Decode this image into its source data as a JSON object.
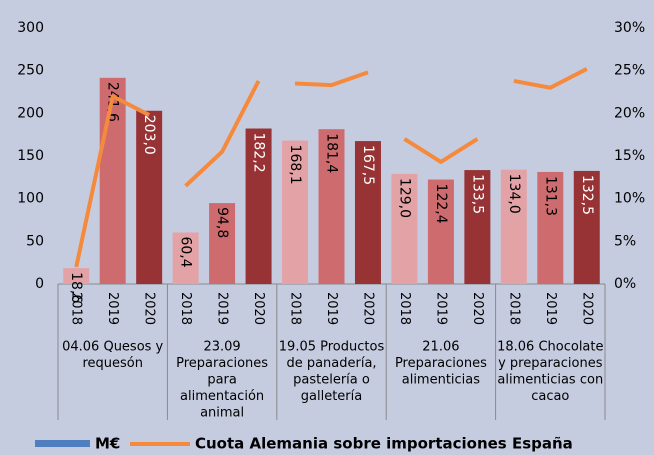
{
  "chart_data": {
    "type": "bar_line",
    "groups": [
      {
        "label": [
          "04.06 Quesos y",
          "requesón"
        ],
        "categories": [
          "2018",
          "2019",
          "2020"
        ]
      },
      {
        "label": [
          "23.09",
          "Preparaciones",
          "para",
          "alimentación",
          "animal"
        ],
        "categories": [
          "2018",
          "2019",
          "2020"
        ]
      },
      {
        "label": [
          "19.05 Productos",
          "de panadería,",
          "pastelería o",
          "galletería"
        ],
        "categories": [
          "2018",
          "2019",
          "2020"
        ]
      },
      {
        "label": [
          "21.06",
          "Preparaciones",
          "alimenticias"
        ],
        "categories": [
          "2018",
          "2019",
          "2020"
        ]
      },
      {
        "label": [
          "18.06 Chocolate",
          "y preparaciones",
          "alimenticias con",
          "cacao"
        ],
        "categories": [
          "2018",
          "2019",
          "2020"
        ]
      }
    ],
    "series": [
      {
        "name": "M€",
        "color": "#4f7fbf",
        "bar_colors": [
          "#e3a3a6",
          "#cd6b6e",
          "#973235"
        ],
        "values": [
          18.6,
          241.6,
          203.0,
          60.4,
          94.8,
          182.2,
          168.1,
          181.4,
          167.5,
          129.0,
          122.4,
          133.5,
          134.0,
          131.3,
          132.5
        ],
        "value_labels": [
          "18,6",
          "241,6",
          "203,0",
          "60,4",
          "94,8",
          "182,2",
          "168,1",
          "181,4",
          "167,5",
          "129,0",
          "122,4",
          "133,5",
          "134,0",
          "131,3",
          "132,5"
        ]
      },
      {
        "name": "Cuota Alemania sobre importaciones España",
        "color": "#f58a3c",
        "axis": "y2",
        "values": [
          2,
          22,
          19.8,
          11.5,
          15.5,
          23.8,
          23.5,
          23.3,
          24.8,
          17,
          14.3,
          17,
          23.8,
          23,
          25.2
        ]
      }
    ],
    "ylim": [
      0,
      300
    ],
    "yticks": [
      0,
      50,
      100,
      150,
      200,
      250,
      300
    ],
    "y2lim": [
      0,
      30
    ],
    "y2ticks": [
      {
        "value": 0,
        "label": "0%"
      },
      {
        "value": 5,
        "label": "5%"
      },
      {
        "value": 10,
        "label": "10%"
      },
      {
        "value": 15,
        "label": "15%"
      },
      {
        "value": 20,
        "label": "20%"
      },
      {
        "value": 25,
        "label": "25%"
      },
      {
        "value": 30,
        "label": "30%"
      }
    ]
  }
}
